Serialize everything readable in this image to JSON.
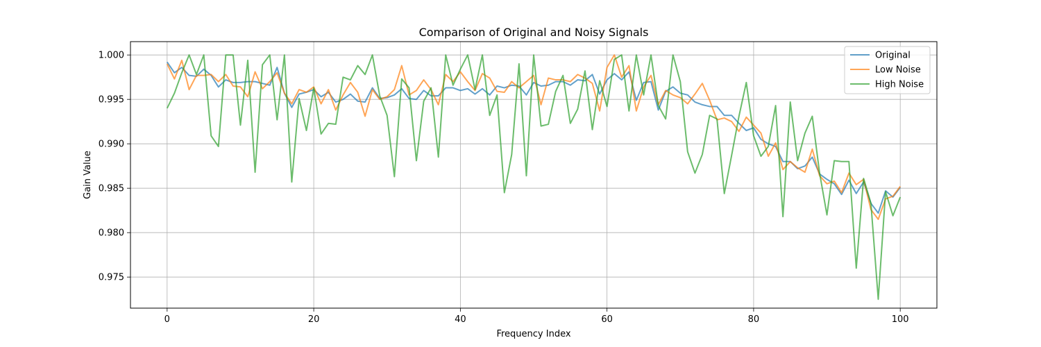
{
  "chart_data": {
    "type": "line",
    "title": "Comparison of Original and Noisy Signals",
    "xlabel": "Frequency Index",
    "ylabel": "Gain Value",
    "xlim": [
      -5,
      105
    ],
    "ylim": [
      0.9715,
      1.0015
    ],
    "xticks": [
      0,
      20,
      40,
      60,
      80,
      100
    ],
    "yticks": [
      0.975,
      0.98,
      0.985,
      0.99,
      0.995,
      1.0
    ],
    "ytick_labels": [
      "0.975",
      "0.980",
      "0.985",
      "0.990",
      "0.995",
      "1.000"
    ],
    "grid": true,
    "legend_position": "top-right",
    "x_start": 0,
    "series": [
      {
        "name": "Original",
        "color": "#1f77b4",
        "values": [
          0.9992,
          0.998,
          0.9986,
          0.9977,
          0.9976,
          0.9984,
          0.9977,
          0.9964,
          0.9972,
          0.9969,
          0.9969,
          0.997,
          0.997,
          0.9968,
          0.9966,
          0.9986,
          0.9957,
          0.9941,
          0.9956,
          0.9958,
          0.9961,
          0.9953,
          0.9958,
          0.9947,
          0.995,
          0.9956,
          0.9948,
          0.9947,
          0.9963,
          0.9951,
          0.9952,
          0.9955,
          0.9962,
          0.9951,
          0.995,
          0.996,
          0.9954,
          0.9954,
          0.9963,
          0.9963,
          0.996,
          0.9962,
          0.9956,
          0.9962,
          0.9955,
          0.9965,
          0.9963,
          0.9966,
          0.9965,
          0.9955,
          0.9969,
          0.9965,
          0.9966,
          0.997,
          0.997,
          0.9966,
          0.9972,
          0.9971,
          0.9978,
          0.9956,
          0.9972,
          0.9979,
          0.9972,
          0.9981,
          0.9949,
          0.9969,
          0.997,
          0.9938,
          0.9959,
          0.9964,
          0.9957,
          0.9955,
          0.9947,
          0.9944,
          0.9942,
          0.9942,
          0.9932,
          0.9932,
          0.9923,
          0.9915,
          0.9918,
          0.9905,
          0.99,
          0.9897,
          0.988,
          0.988,
          0.9872,
          0.9875,
          0.9885,
          0.9866,
          0.986,
          0.9855,
          0.9843,
          0.9859,
          0.9844,
          0.9857,
          0.9833,
          0.9822,
          0.9847,
          0.984,
          0.9851
        ]
      },
      {
        "name": "Low Noise",
        "color": "#ff7f0e",
        "values": [
          0.999,
          0.9973,
          0.9994,
          0.9961,
          0.9977,
          0.9977,
          0.9978,
          0.997,
          0.9978,
          0.9965,
          0.9964,
          0.9953,
          0.9981,
          0.9962,
          0.997,
          0.998,
          0.9957,
          0.9945,
          0.9961,
          0.9958,
          0.9964,
          0.9945,
          0.9961,
          0.9938,
          0.9955,
          0.9969,
          0.9958,
          0.9931,
          0.9961,
          0.995,
          0.9953,
          0.9961,
          0.9988,
          0.9955,
          0.996,
          0.9972,
          0.9961,
          0.9944,
          0.9978,
          0.997,
          0.9981,
          0.997,
          0.996,
          0.9979,
          0.9974,
          0.9959,
          0.9958,
          0.997,
          0.9963,
          0.997,
          0.9977,
          0.9944,
          0.9974,
          0.9972,
          0.9972,
          0.997,
          0.9978,
          0.9974,
          0.9968,
          0.9937,
          0.9986,
          1.0,
          0.9975,
          0.9988,
          0.9937,
          0.9964,
          0.9977,
          0.9944,
          0.996,
          0.9955,
          0.9952,
          0.9945,
          0.9956,
          0.9968,
          0.9949,
          0.9927,
          0.9929,
          0.9925,
          0.9914,
          0.993,
          0.9921,
          0.9912,
          0.9886,
          0.9901,
          0.9871,
          0.988,
          0.9873,
          0.9868,
          0.9894,
          0.9864,
          0.9855,
          0.9858,
          0.9845,
          0.9867,
          0.9854,
          0.986,
          0.9826,
          0.9815,
          0.9838,
          0.9841,
          0.9852
        ]
      },
      {
        "name": "High Noise",
        "color": "#2ca02c",
        "values": [
          0.994,
          0.9957,
          0.998,
          1.0,
          0.9978,
          1.0,
          0.9909,
          0.9897,
          1.0,
          1.0,
          0.9921,
          0.9994,
          0.9868,
          0.9989,
          1.0,
          0.9927,
          1.0,
          0.9857,
          0.9951,
          0.9915,
          0.9963,
          0.9911,
          0.9923,
          0.9922,
          0.9975,
          0.9972,
          0.9988,
          0.9978,
          1.0,
          0.9954,
          0.9932,
          0.9863,
          0.9973,
          0.9963,
          0.9881,
          0.9948,
          0.9963,
          0.9885,
          1.0,
          0.9966,
          0.9984,
          1.0,
          0.9961,
          1.0,
          0.9932,
          0.9955,
          0.9845,
          0.9888,
          0.999,
          0.9864,
          1.0,
          0.992,
          0.9922,
          0.9959,
          0.9977,
          0.9923,
          0.9939,
          0.9982,
          0.9916,
          0.9971,
          0.9942,
          0.9995,
          1.0,
          0.9937,
          1.0,
          0.9955,
          1.0,
          0.9943,
          0.9928,
          1.0,
          0.997,
          0.9891,
          0.9867,
          0.9888,
          0.9932,
          0.9928,
          0.9844,
          0.9887,
          0.9931,
          0.9969,
          0.9909,
          0.9886,
          0.9897,
          0.9943,
          0.9818,
          0.9947,
          0.9881,
          0.9912,
          0.9931,
          0.9867,
          0.982,
          0.9881,
          0.988,
          0.988,
          0.976,
          0.9861,
          0.9833,
          0.9725,
          0.9846,
          0.9819,
          0.984
        ]
      }
    ]
  }
}
